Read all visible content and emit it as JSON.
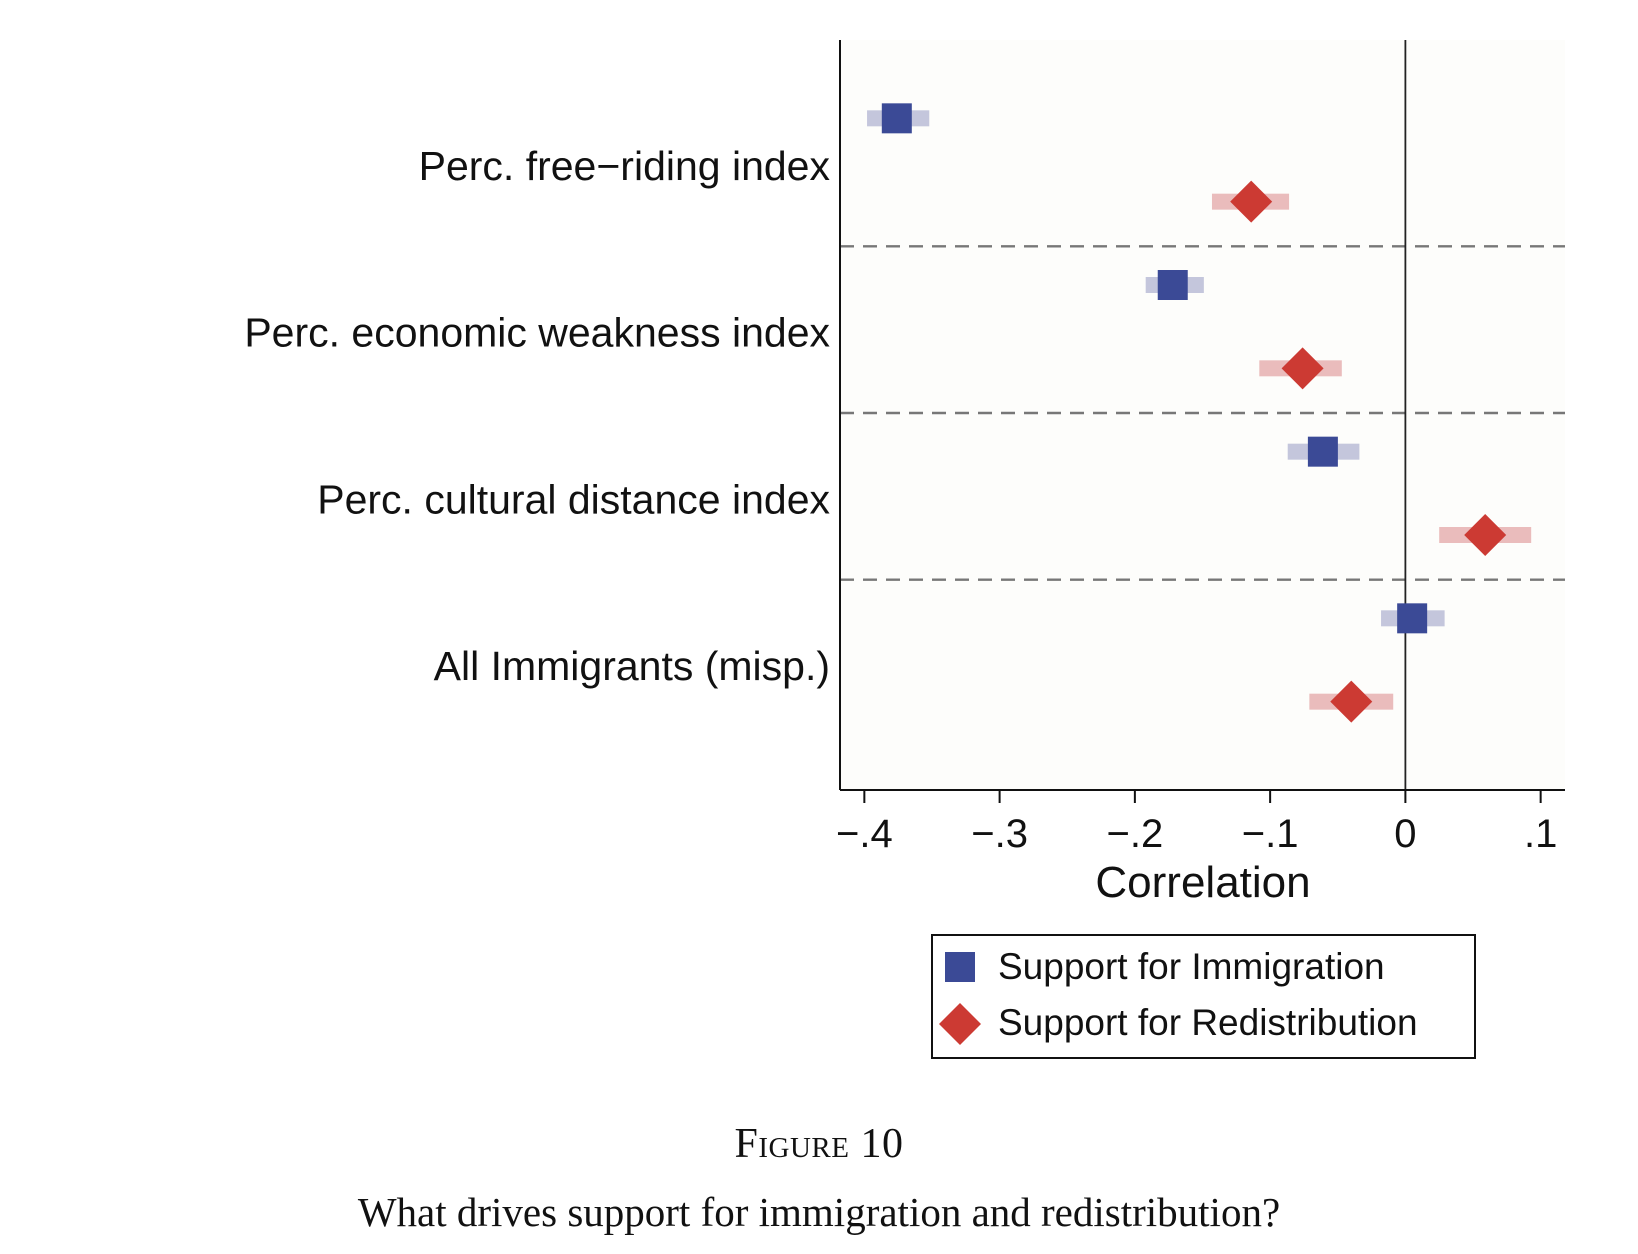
{
  "chart_data": {
    "type": "scatter",
    "subtype": "coefficient-plot",
    "categories": [
      "Perc. free−riding index",
      "Perc. economic weakness index",
      "Perc. cultural distance index",
      "All Immigrants (misp.)"
    ],
    "series": [
      {
        "name": "Support for Immigration",
        "marker": "square",
        "color": "#3b4a96",
        "ci_color": "#c4c6dc",
        "values": [
          -0.376,
          -0.172,
          -0.061,
          0.005
        ],
        "ci": [
          [
            -0.398,
            -0.352
          ],
          [
            -0.192,
            -0.149
          ],
          [
            -0.087,
            -0.034
          ],
          [
            -0.018,
            0.029
          ]
        ]
      },
      {
        "name": "Support for Redistribution",
        "marker": "diamond",
        "color": "#cc3a33",
        "ci_color": "#eabcbc",
        "values": [
          -0.114,
          -0.076,
          0.059,
          -0.04
        ],
        "ci": [
          [
            -0.143,
            -0.086
          ],
          [
            -0.108,
            -0.047
          ],
          [
            0.025,
            0.093
          ],
          [
            -0.071,
            -0.009
          ]
        ]
      }
    ],
    "xlabel": "Correlation",
    "xlim": [
      -0.418,
      0.118
    ],
    "xticks": [
      -0.4,
      -0.3,
      -0.2,
      -0.1,
      0,
      0.1
    ],
    "xtick_labels": [
      "−.4",
      "−.3",
      "−.2",
      "−.1",
      "0",
      ".1"
    ],
    "reference_line": 0,
    "group_separators": "dashed",
    "legend_position": "bottom"
  },
  "caption": {
    "figure_label": "Figure 10",
    "title": "What drives support for immigration and redistribution?"
  }
}
